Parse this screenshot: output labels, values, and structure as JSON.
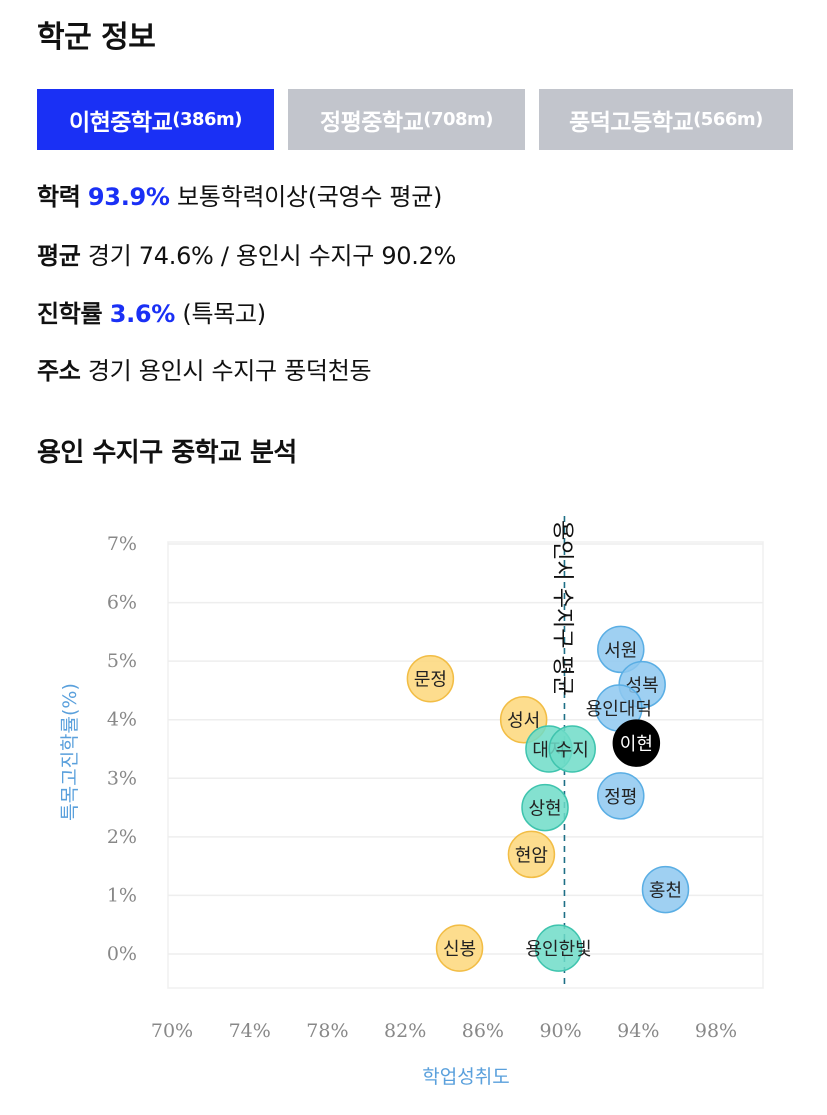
{
  "header": {
    "title": "학군 정보"
  },
  "tabs": [
    {
      "name": "이현중학교",
      "distance": "(386m)",
      "active": true
    },
    {
      "name": "정평중학교",
      "distance": "(708m)",
      "active": false
    },
    {
      "name": "풍덕고등학교",
      "distance": "(566m)",
      "active": false
    }
  ],
  "info": {
    "academic": {
      "label": "학력",
      "value": "93.9%",
      "text": "보통학력이상(국영수 평균)"
    },
    "average": {
      "label": "평균",
      "text": "경기 74.6% / 용인시 수지구 90.2%"
    },
    "advancement": {
      "label": "진학률",
      "value": "3.6%",
      "text": "(특목고)"
    },
    "address": {
      "label": "주소",
      "text": "경기 용인시 수지구 풍덕천동"
    }
  },
  "analysis": {
    "title": "용인 수지구 중학교 분석"
  },
  "colors": {
    "accent": "#1a30f5",
    "tab_inactive": "#c2c5cc",
    "bubble_blue": "#8ec8f0",
    "bubble_teal": "#6fdcc8",
    "bubble_yellow": "#fdd77a",
    "bubble_selected": "#000000",
    "axis_title": "#5aa0dc"
  },
  "chart_data": {
    "type": "scatter",
    "xlabel": "학업성취도",
    "ylabel": "특목고진학률(%)",
    "xlim": [
      70,
      100
    ],
    "ylim": [
      0,
      7
    ],
    "x_ticks": [
      "70%",
      "74%",
      "78%",
      "82%",
      "86%",
      "90%",
      "94%",
      "98%"
    ],
    "y_ticks": [
      "0%",
      "1%",
      "2%",
      "3%",
      "4%",
      "5%",
      "6%",
      "7%"
    ],
    "reference_line": {
      "x": 90.2,
      "label": "용인시 수지구 평균"
    },
    "grid": true,
    "points": [
      {
        "label": "서원",
        "x": 93.1,
        "y": 5.2,
        "color": "blue"
      },
      {
        "label": "성복",
        "x": 94.2,
        "y": 4.6,
        "color": "blue"
      },
      {
        "label": "용인대덕",
        "x": 93.0,
        "y": 4.2,
        "color": "blue"
      },
      {
        "label": "이현",
        "x": 93.9,
        "y": 3.6,
        "color": "selected"
      },
      {
        "label": "정평",
        "x": 93.1,
        "y": 2.7,
        "color": "blue"
      },
      {
        "label": "홍천",
        "x": 95.4,
        "y": 1.1,
        "color": "blue"
      },
      {
        "label": "문정",
        "x": 83.3,
        "y": 4.7,
        "color": "yellow"
      },
      {
        "label": "성서",
        "x": 88.1,
        "y": 4.0,
        "color": "yellow"
      },
      {
        "label": "현암",
        "x": 88.5,
        "y": 1.7,
        "color": "yellow"
      },
      {
        "label": "신봉",
        "x": 84.8,
        "y": 0.1,
        "color": "yellow"
      },
      {
        "label": "대지",
        "x": 89.4,
        "y": 3.5,
        "color": "teal"
      },
      {
        "label": "수지",
        "x": 90.6,
        "y": 3.5,
        "color": "teal"
      },
      {
        "label": "상현",
        "x": 89.2,
        "y": 2.5,
        "color": "teal"
      },
      {
        "label": "용인한빛",
        "x": 89.9,
        "y": 0.1,
        "color": "teal"
      }
    ]
  }
}
